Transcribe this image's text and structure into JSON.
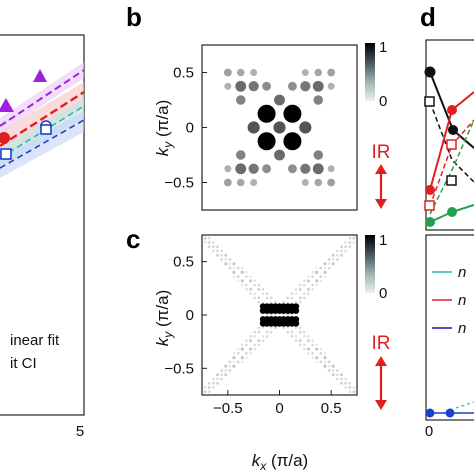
{
  "panel_letters": {
    "b": "b",
    "c": "c",
    "d": "d"
  },
  "ir_label": "IR",
  "colorbar_labels": {
    "max": "1",
    "min": "0"
  },
  "axis_labels": {
    "ky_main": "k",
    "ky_sub": "y",
    "ky_unit": " (π/a)",
    "kx_main": "k",
    "kx_sub": "x",
    "kx_unit": " (π/a)"
  },
  "colors": {
    "red": "#e02020",
    "purple": "#a020e0",
    "teal": "#2bb7b0",
    "blue": "#1f3fd0",
    "green": "#22a050",
    "black": "#111111",
    "dark_red": "#c02020",
    "navy": "#1a1aa0",
    "spot_dark": "#000000"
  },
  "chart_data": [
    {
      "type": "scatter",
      "panel": "a",
      "x_tick_labels": [
        "5"
      ],
      "legend": [
        "inear fit",
        "it CI"
      ],
      "series": [
        {
          "color": "#a020e0",
          "marker": "triangle",
          "points": [
            [
              2.5,
              0.79
            ],
            [
              3.8,
              0.86
            ]
          ]
        },
        {
          "color": "#e02020",
          "marker": "circle",
          "points": [
            [
              0.05,
              0.69
            ]
          ]
        },
        {
          "color": "#2bb7b0",
          "marker": "line",
          "points": [
            [
              0.0,
              0.66
            ],
            [
              4.0,
              0.76
            ]
          ]
        },
        {
          "color": "#1f3fd0",
          "marker": "square-open",
          "points": [
            [
              0.05,
              0.615
            ],
            [
              2.4,
              0.65
            ]
          ]
        },
        {
          "color": "#1f3fd0",
          "marker": "circle-open",
          "points": [
            [
              2.45,
              0.675
            ]
          ]
        }
      ]
    },
    {
      "type": "scatter",
      "panel": "b",
      "title": "b",
      "xlim": [
        -0.75,
        0.75
      ],
      "ylim": [
        -0.75,
        0.75
      ],
      "y_ticks": [
        0.5,
        0,
        -0.5
      ],
      "y_tick_labels": [
        "0.5",
        "0",
        "−0.5"
      ],
      "ylabel": "k_y (π/a)",
      "colorbar": [
        "1",
        "0"
      ],
      "note": "Bragg peak intensities (size/darkness ∝ intensity)",
      "points": [
        {
          "x": -0.125,
          "y": 0.125,
          "intensity": 1.0
        },
        {
          "x": 0.125,
          "y": 0.125,
          "intensity": 1.0
        },
        {
          "x": -0.125,
          "y": -0.125,
          "intensity": 1.0
        },
        {
          "x": 0.125,
          "y": -0.125,
          "intensity": 1.0
        },
        {
          "x": 0.0,
          "y": 0.0,
          "intensity": 0.55
        },
        {
          "x": -0.25,
          "y": 0.0,
          "intensity": 0.55
        },
        {
          "x": 0.25,
          "y": 0.0,
          "intensity": 0.55
        },
        {
          "x": 0.0,
          "y": 0.25,
          "intensity": 0.45
        },
        {
          "x": 0.0,
          "y": -0.25,
          "intensity": 0.45
        },
        {
          "x": -0.375,
          "y": 0.375,
          "intensity": 0.45
        },
        {
          "x": 0.375,
          "y": 0.375,
          "intensity": 0.45
        },
        {
          "x": -0.375,
          "y": -0.375,
          "intensity": 0.45
        },
        {
          "x": 0.375,
          "y": -0.375,
          "intensity": 0.45
        },
        {
          "x": -0.25,
          "y": 0.375,
          "intensity": 0.4
        },
        {
          "x": 0.25,
          "y": 0.375,
          "intensity": 0.4
        },
        {
          "x": -0.25,
          "y": -0.375,
          "intensity": 0.4
        },
        {
          "x": 0.25,
          "y": -0.375,
          "intensity": 0.4
        },
        {
          "x": -0.375,
          "y": 0.25,
          "intensity": 0.35
        },
        {
          "x": 0.375,
          "y": 0.25,
          "intensity": 0.35
        },
        {
          "x": -0.375,
          "y": -0.25,
          "intensity": 0.35
        },
        {
          "x": 0.375,
          "y": -0.25,
          "intensity": 0.35
        },
        {
          "x": -0.125,
          "y": 0.375,
          "intensity": 0.3
        },
        {
          "x": 0.125,
          "y": 0.375,
          "intensity": 0.3
        },
        {
          "x": -0.125,
          "y": -0.375,
          "intensity": 0.3
        },
        {
          "x": 0.125,
          "y": -0.375,
          "intensity": 0.3
        },
        {
          "x": -0.5,
          "y": 0.5,
          "intensity": 0.22
        },
        {
          "x": 0.5,
          "y": 0.5,
          "intensity": 0.22
        },
        {
          "x": -0.5,
          "y": -0.5,
          "intensity": 0.22
        },
        {
          "x": 0.5,
          "y": -0.5,
          "intensity": 0.22
        },
        {
          "x": -0.375,
          "y": 0.5,
          "intensity": 0.2
        },
        {
          "x": 0.375,
          "y": 0.5,
          "intensity": 0.2
        },
        {
          "x": -0.375,
          "y": -0.5,
          "intensity": 0.2
        },
        {
          "x": 0.375,
          "y": -0.5,
          "intensity": 0.2
        },
        {
          "x": -0.25,
          "y": 0.5,
          "intensity": 0.15
        },
        {
          "x": 0.25,
          "y": 0.5,
          "intensity": 0.15
        },
        {
          "x": -0.25,
          "y": -0.5,
          "intensity": 0.15
        },
        {
          "x": 0.25,
          "y": -0.5,
          "intensity": 0.15
        },
        {
          "x": -0.5,
          "y": 0.375,
          "intensity": 0.15
        },
        {
          "x": 0.5,
          "y": 0.375,
          "intensity": 0.15
        },
        {
          "x": -0.5,
          "y": -0.375,
          "intensity": 0.15
        },
        {
          "x": 0.5,
          "y": -0.375,
          "intensity": 0.15
        }
      ]
    },
    {
      "type": "heatmap",
      "panel": "c",
      "title": "c",
      "xlim": [
        -0.75,
        0.75
      ],
      "ylim": [
        -0.75,
        0.75
      ],
      "x_ticks": [
        -0.5,
        0,
        0.5
      ],
      "x_tick_labels": [
        "−0.5",
        "0",
        "0.5"
      ],
      "y_ticks": [
        0.5,
        0,
        -0.5
      ],
      "y_tick_labels": [
        "0.5",
        "0",
        "−0.5"
      ],
      "xlabel": "k_x (π/a)",
      "ylabel": "k_y (π/a)",
      "colorbar": [
        "1",
        "0"
      ],
      "note": "bright cluster near origin with faint diagonal X-shaped streaks"
    },
    {
      "type": "line",
      "panel": "d",
      "title": "d",
      "x_tick_labels": [
        "0"
      ],
      "legend": [
        "n",
        "n",
        "n"
      ],
      "series": [
        {
          "color": "#111111",
          "marker": "circle",
          "points": [
            [
              0.0,
              0.86
            ],
            [
              0.25,
              0.67
            ],
            [
              0.5,
              0.52
            ]
          ]
        },
        {
          "color": "#111111",
          "marker": "square-open",
          "dashed": true,
          "points": [
            [
              0.0,
              0.74
            ],
            [
              0.25,
              0.58
            ]
          ]
        },
        {
          "color": "#e02020",
          "marker": "circle",
          "points": [
            [
              0.0,
              0.38
            ],
            [
              0.25,
              0.72
            ],
            [
              0.5,
              0.78
            ]
          ]
        },
        {
          "color": "#e02020",
          "marker": "square-open",
          "dashed": true,
          "points": [
            [
              0.0,
              0.22
            ],
            [
              0.25,
              0.55
            ]
          ]
        },
        {
          "color": "#22a050",
          "marker": "circle",
          "points": [
            [
              0.0,
              0.12
            ],
            [
              0.25,
              0.18
            ]
          ]
        },
        {
          "color": "#22a050",
          "marker": "square-open",
          "dashed": true,
          "points": [
            [
              0.0,
              0.05
            ],
            [
              0.25,
              0.45
            ]
          ]
        },
        {
          "color": "#1f3fd0",
          "marker": "circle",
          "points": [
            [
              0.0,
              0.02
            ],
            [
              0.25,
              0.02
            ]
          ]
        }
      ]
    }
  ]
}
